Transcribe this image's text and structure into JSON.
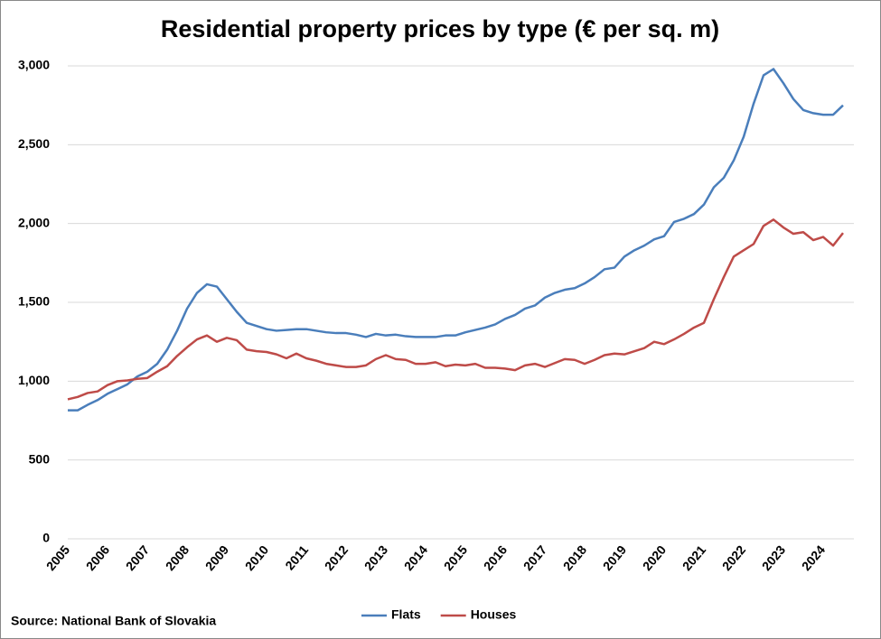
{
  "chart_data": {
    "type": "line",
    "title": "Residential property prices by type (€  per sq. m)",
    "source": "Source: National Bank of Slovakia",
    "categories": [
      "2005",
      null,
      null,
      null,
      "2006",
      null,
      null,
      null,
      "2007",
      null,
      null,
      null,
      "2008",
      null,
      null,
      null,
      "2009",
      null,
      null,
      null,
      "2010",
      null,
      null,
      null,
      "2011",
      null,
      null,
      null,
      "2012",
      null,
      null,
      null,
      "2013",
      null,
      null,
      null,
      "2014",
      null,
      null,
      null,
      "2015",
      null,
      null,
      null,
      "2016",
      null,
      null,
      null,
      "2017",
      null,
      null,
      null,
      "2018",
      null,
      null,
      null,
      "2019",
      null,
      null,
      null,
      "2020",
      null,
      null,
      null,
      "2021",
      null,
      null,
      null,
      "2022",
      null,
      null,
      null,
      "2023",
      null,
      null,
      null,
      "2024",
      null,
      null
    ],
    "series": [
      {
        "name": "Flats",
        "color": "#4a7ebb",
        "values": [
          815,
          815,
          850,
          880,
          920,
          950,
          980,
          1030,
          1060,
          1110,
          1200,
          1320,
          1460,
          1560,
          1615,
          1600,
          1520,
          1440,
          1370,
          1350,
          1330,
          1320,
          1325,
          1330,
          1330,
          1320,
          1310,
          1305,
          1305,
          1295,
          1280,
          1300,
          1290,
          1295,
          1285,
          1280,
          1280,
          1280,
          1290,
          1290,
          1310,
          1325,
          1340,
          1360,
          1395,
          1420,
          1460,
          1480,
          1530,
          1560,
          1580,
          1590,
          1620,
          1660,
          1710,
          1720,
          1790,
          1830,
          1860,
          1900,
          1920,
          2010,
          2030,
          2060,
          2120,
          2230,
          2290,
          2400,
          2550,
          2760,
          2940,
          2980,
          2890,
          2790,
          2720,
          2700,
          2690,
          2690,
          2750
        ]
      },
      {
        "name": "Houses",
        "color": "#be4b48",
        "values": [
          885,
          900,
          925,
          935,
          975,
          1000,
          1005,
          1015,
          1020,
          1060,
          1095,
          1160,
          1215,
          1265,
          1290,
          1250,
          1275,
          1260,
          1200,
          1190,
          1185,
          1170,
          1145,
          1175,
          1145,
          1130,
          1110,
          1100,
          1090,
          1090,
          1100,
          1140,
          1165,
          1140,
          1135,
          1110,
          1110,
          1120,
          1095,
          1105,
          1100,
          1110,
          1085,
          1085,
          1080,
          1070,
          1100,
          1110,
          1090,
          1115,
          1140,
          1135,
          1110,
          1135,
          1165,
          1175,
          1170,
          1190,
          1210,
          1250,
          1235,
          1265,
          1300,
          1340,
          1370,
          1520,
          1660,
          1790,
          1830,
          1870,
          1985,
          2025,
          1975,
          1935,
          1945,
          1895,
          1915,
          1860,
          1940
        ]
      }
    ],
    "ylim": [
      0,
      3000
    ],
    "yticks": [
      0,
      500,
      {
        "value": 1000,
        "label": "1,000"
      },
      {
        "value": 1500,
        "label": "1,500"
      },
      {
        "value": 2000,
        "label": "2,000"
      },
      {
        "value": 2500,
        "label": "2,500"
      },
      {
        "value": 3000,
        "label": "3,000"
      }
    ],
    "grid": true,
    "legend": "bottom"
  }
}
